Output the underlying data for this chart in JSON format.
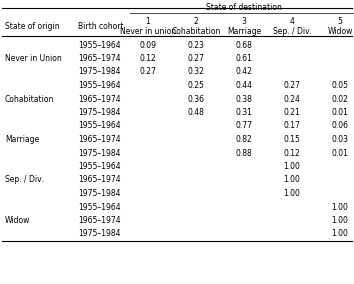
{
  "col_headers_span": "State of destination",
  "col_headers_num": [
    "1",
    "2",
    "3",
    "4",
    "5"
  ],
  "col_headers_name": [
    "Never in union",
    "Cohabitation",
    "Marriage",
    "Sep. / Div.",
    "Widow"
  ],
  "col_label_origin": "State of origin",
  "col_label_cohort": "Birth cohort",
  "rows": [
    [
      "",
      "1955–1964",
      "0.09",
      "0.23",
      "0.68",
      "",
      ""
    ],
    [
      "Never in Union",
      "1965–1974",
      "0.12",
      "0.27",
      "0.61",
      "",
      ""
    ],
    [
      "",
      "1975–1984",
      "0.27",
      "0.32",
      "0.42",
      "",
      ""
    ],
    [
      "",
      "1955–1964",
      "",
      "0.25",
      "0.44",
      "0.27",
      "0.05"
    ],
    [
      "Cohabitation",
      "1965–1974",
      "",
      "0.36",
      "0.38",
      "0.24",
      "0.02"
    ],
    [
      "",
      "1975–1984",
      "",
      "0.48",
      "0.31",
      "0.21",
      "0.01"
    ],
    [
      "",
      "1955–1964",
      "",
      "",
      "0.77",
      "0.17",
      "0.06"
    ],
    [
      "Marriage",
      "1965–1974",
      "",
      "",
      "0.82",
      "0.15",
      "0.03"
    ],
    [
      "",
      "1975–1984",
      "",
      "",
      "0.88",
      "0.12",
      "0.01"
    ],
    [
      "",
      "1955–1964",
      "",
      "",
      "",
      "1.00",
      ""
    ],
    [
      "Sep. / Div.",
      "1965–1974",
      "",
      "",
      "",
      "1.00",
      ""
    ],
    [
      "",
      "1975–1984",
      "",
      "",
      "",
      "1.00",
      ""
    ],
    [
      "",
      "1955–1964",
      "",
      "",
      "",
      "",
      "1.00"
    ],
    [
      "Widow",
      "1965–1974",
      "",
      "",
      "",
      "",
      "1.00"
    ],
    [
      "",
      "1975–1984",
      "",
      "",
      "",
      "",
      "1.00"
    ]
  ],
  "bg_color": "#ffffff",
  "text_color": "#000000",
  "line_color": "#000000",
  "font_size": 5.5,
  "header_font_size": 5.5
}
